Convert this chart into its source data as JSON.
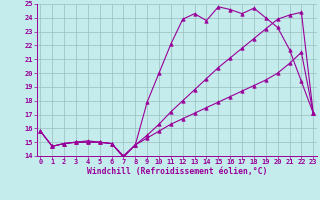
{
  "xlabel": "Windchill (Refroidissement éolien,°C)",
  "xlim_min": 0,
  "xlim_max": 23,
  "ylim_min": 14,
  "ylim_max": 25,
  "xticks": [
    0,
    1,
    2,
    3,
    4,
    5,
    6,
    7,
    8,
    9,
    10,
    11,
    12,
    13,
    14,
    15,
    16,
    17,
    18,
    19,
    20,
    21,
    22,
    23
  ],
  "yticks": [
    14,
    15,
    16,
    17,
    18,
    19,
    20,
    21,
    22,
    23,
    24,
    25
  ],
  "bg_color": "#c5eced",
  "grid_color": "#9bbcbd",
  "line_color": "#990099",
  "line1_x": [
    0,
    1,
    2,
    3,
    4,
    5,
    6,
    7,
    8,
    9,
    10,
    11,
    12,
    13,
    14,
    15,
    16,
    17,
    18,
    19,
    20,
    21,
    22,
    23
  ],
  "line1_y": [
    15.8,
    14.7,
    14.9,
    15.0,
    15.1,
    15.0,
    14.9,
    13.9,
    14.8,
    17.9,
    20.0,
    22.1,
    23.9,
    24.3,
    23.8,
    24.8,
    24.6,
    24.3,
    24.7,
    24.0,
    23.3,
    21.7,
    19.4,
    17.1
  ],
  "line2_x": [
    0,
    1,
    2,
    3,
    4,
    5,
    6,
    7,
    8,
    9,
    10,
    11,
    12,
    13,
    14,
    15,
    16,
    17,
    18,
    19,
    20,
    21,
    22,
    23
  ],
  "line2_y": [
    15.8,
    14.7,
    14.9,
    15.0,
    15.0,
    15.0,
    14.9,
    14.0,
    14.8,
    15.5,
    16.3,
    17.2,
    18.0,
    18.8,
    19.6,
    20.4,
    21.1,
    21.8,
    22.5,
    23.2,
    23.9,
    24.2,
    24.4,
    17.1
  ],
  "line3_x": [
    0,
    1,
    2,
    3,
    4,
    5,
    6,
    7,
    8,
    9,
    10,
    11,
    12,
    13,
    14,
    15,
    16,
    17,
    18,
    19,
    20,
    21,
    22,
    23
  ],
  "line3_y": [
    15.8,
    14.7,
    14.9,
    15.0,
    15.0,
    15.0,
    14.9,
    14.0,
    14.8,
    15.3,
    15.8,
    16.3,
    16.7,
    17.1,
    17.5,
    17.9,
    18.3,
    18.7,
    19.1,
    19.5,
    20.0,
    20.7,
    21.5,
    17.1
  ],
  "marker": "^",
  "markersize": 2.5,
  "linewidth": 0.8,
  "tick_fontsize": 5.0,
  "label_fontsize": 5.8
}
